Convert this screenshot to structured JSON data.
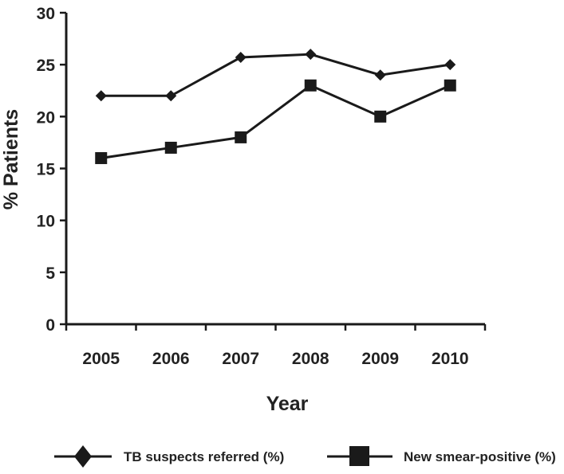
{
  "chart_data": {
    "type": "line",
    "x": [
      "2005",
      "2006",
      "2007",
      "2008",
      "2009",
      "2010"
    ],
    "series": [
      {
        "name": "TB suspects referred (%)",
        "marker": "diamond",
        "values": [
          22,
          22,
          25.7,
          26,
          24,
          25
        ]
      },
      {
        "name": "New smear-positive (%)",
        "marker": "square",
        "values": [
          16,
          17,
          18,
          23,
          20,
          23
        ]
      }
    ],
    "xlabel": "Year",
    "ylabel": "% Patients",
    "ylim": [
      0,
      30
    ],
    "yticks": [
      "0",
      "5",
      "10",
      "15",
      "20",
      "25",
      "30"
    ],
    "grid": false,
    "legend": "bottom",
    "line_color": "#1a1a1a"
  }
}
